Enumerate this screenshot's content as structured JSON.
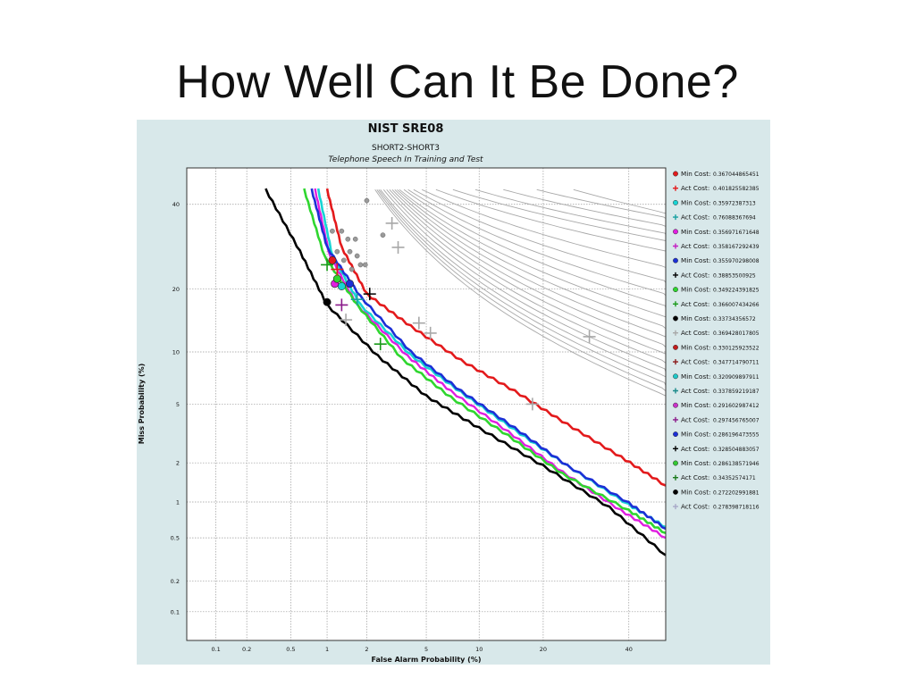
{
  "slide": {
    "title": "How Well Can It Be Done?"
  },
  "chart_data": {
    "type": "line",
    "title": "NIST SRE08",
    "subtitle": "SHORT2-SHORT3",
    "subtitle2": "Telephone Speech In Training and Test",
    "xlabel": "False Alarm Probability (%)",
    "ylabel": "Miss Probability (%)",
    "x_scale": "normal-deviate (probit)",
    "y_scale": "normal-deviate (probit)",
    "xlim": [
      0.05,
      50
    ],
    "ylim": [
      0.05,
      50
    ],
    "x_ticks": [
      {
        "value": 0.1,
        "label": "0.1"
      },
      {
        "value": 0.2,
        "label": "0.2"
      },
      {
        "value": 0.5,
        "label": "0.5"
      },
      {
        "value": 1,
        "label": "1"
      },
      {
        "value": 2,
        "label": "2"
      },
      {
        "value": 5,
        "label": "5"
      },
      {
        "value": 10,
        "label": "10"
      },
      {
        "value": 20,
        "label": "20"
      },
      {
        "value": 40,
        "label": "40"
      }
    ],
    "y_ticks": [
      {
        "value": 0.1,
        "label": "0.1"
      },
      {
        "value": 0.2,
        "label": "0.2"
      },
      {
        "value": 0.5,
        "label": "0.5"
      },
      {
        "value": 1,
        "label": "1"
      },
      {
        "value": 2,
        "label": "2"
      },
      {
        "value": 5,
        "label": "5"
      },
      {
        "value": 10,
        "label": "10"
      },
      {
        "value": 20,
        "label": "20"
      },
      {
        "value": 40,
        "label": "40"
      }
    ],
    "grid": true,
    "legend_placement": "right",
    "legend": [
      {
        "marker": "dot",
        "color": "#e31a1c",
        "label": "Min Cost:",
        "value": "0.367044865451"
      },
      {
        "marker": "plus",
        "color": "#e31a1c",
        "label": "Act Cost:",
        "value": "0.401825582385"
      },
      {
        "marker": "dot",
        "color": "#17d4d4",
        "label": "Min Cost:",
        "value": "0.35972387313"
      },
      {
        "marker": "plus",
        "color": "#17a0a0",
        "label": "Act Cost:",
        "value": "0.76088367694"
      },
      {
        "marker": "dot",
        "color": "#e01ee0",
        "label": "Min Cost:",
        "value": "0.356971671648"
      },
      {
        "marker": "plus",
        "color": "#c31ec3",
        "label": "Act Cost:",
        "value": "0.358167292439"
      },
      {
        "marker": "dot",
        "color": "#1c2fd6",
        "label": "Min Cost:",
        "value": "0.355970298008"
      },
      {
        "marker": "plus",
        "color": "#000000",
        "label": "Act Cost:",
        "value": "0.38853500925"
      },
      {
        "marker": "dot",
        "color": "#2fd62f",
        "label": "Min Cost:",
        "value": "0.349224391825"
      },
      {
        "marker": "plus",
        "color": "#1a9a1a",
        "label": "Act Cost:",
        "value": "0.366007434266"
      },
      {
        "marker": "dot",
        "color": "#000000",
        "label": "Min Cost:",
        "value": "0.33734356572"
      },
      {
        "marker": "plus",
        "color": "#a8a8a8",
        "label": "Act Cost:",
        "value": "0.369428017805"
      },
      {
        "marker": "dot",
        "color": "#c21d1d",
        "label": "Min Cost:",
        "value": "0.330125923522"
      },
      {
        "marker": "plus",
        "color": "#8a1a1a",
        "label": "Act Cost:",
        "value": "0.347714790711"
      },
      {
        "marker": "dot",
        "color": "#1ec8c8",
        "label": "Min Cost:",
        "value": "0.320909897911"
      },
      {
        "marker": "plus",
        "color": "#1a8a8a",
        "label": "Act Cost:",
        "value": "0.337859219187"
      },
      {
        "marker": "dot",
        "color": "#c833c8",
        "label": "Min Cost:",
        "value": "0.291602987412"
      },
      {
        "marker": "plus",
        "color": "#8a1a8a",
        "label": "Act Cost:",
        "value": "0.297456765007"
      },
      {
        "marker": "dot",
        "color": "#1c2fd6",
        "label": "Min Cost:",
        "value": "0.286196473555"
      },
      {
        "marker": "plus",
        "color": "#000000",
        "label": "Act Cost:",
        "value": "0.328504883057"
      },
      {
        "marker": "dot",
        "color": "#33c833",
        "label": "Min Cost:",
        "value": "0.286138571946"
      },
      {
        "marker": "plus",
        "color": "#1a7a1a",
        "label": "Act Cost:",
        "value": "0.34352574171"
      },
      {
        "marker": "dot",
        "color": "#000000",
        "label": "Min Cost:",
        "value": "0.272202991881"
      },
      {
        "marker": "plus",
        "color": "#a8a8c8",
        "label": "Act Cost:",
        "value": "0.278398718116"
      }
    ],
    "series": [
      {
        "color": "#e31a1c",
        "width": 2.6,
        "points": [
          [
            1.0,
            44
          ],
          [
            1.3,
            29
          ],
          [
            2.0,
            19
          ],
          [
            4,
            13.5
          ],
          [
            8,
            9
          ],
          [
            15,
            6
          ],
          [
            25,
            3.7
          ],
          [
            38,
            2.2
          ],
          [
            50,
            1.35
          ]
        ]
      },
      {
        "color": "#17d4d4",
        "width": 2.6,
        "points": [
          [
            0.85,
            44
          ],
          [
            1.1,
            27
          ],
          [
            1.8,
            17
          ],
          [
            4,
            9.6
          ],
          [
            8,
            5.9
          ],
          [
            15,
            3.4
          ],
          [
            25,
            1.9
          ],
          [
            40,
            0.95
          ],
          [
            50,
            0.62
          ]
        ]
      },
      {
        "color": "#e01ee0",
        "width": 2.4,
        "points": [
          [
            0.8,
            44
          ],
          [
            1.05,
            27
          ],
          [
            1.7,
            17
          ],
          [
            3.8,
            9.5
          ],
          [
            7,
            6
          ],
          [
            14,
            3.3
          ],
          [
            24,
            1.7
          ],
          [
            38,
            0.85
          ],
          [
            50,
            0.5
          ]
        ]
      },
      {
        "color": "#1c2fd6",
        "width": 2.6,
        "points": [
          [
            0.75,
            44
          ],
          [
            1.0,
            29
          ],
          [
            1.8,
            18.5
          ],
          [
            4,
            10
          ],
          [
            8,
            6
          ],
          [
            15,
            3.5
          ],
          [
            25,
            1.9
          ],
          [
            40,
            0.98
          ],
          [
            50,
            0.6
          ]
        ]
      },
      {
        "color": "#2fd62f",
        "width": 2.6,
        "points": [
          [
            0.65,
            44
          ],
          [
            0.95,
            27
          ],
          [
            1.7,
            17
          ],
          [
            3.5,
            9.2
          ],
          [
            7,
            5.5
          ],
          [
            14,
            3.1
          ],
          [
            24,
            1.65
          ],
          [
            40,
            0.85
          ],
          [
            50,
            0.55
          ]
        ]
      },
      {
        "color": "#000000",
        "width": 2.6,
        "points": [
          [
            0.3,
            44
          ],
          [
            0.6,
            28
          ],
          [
            1.0,
            17
          ],
          [
            2.4,
            9.5
          ],
          [
            5,
            5.6
          ],
          [
            10,
            3.5
          ],
          [
            20,
            1.9
          ],
          [
            35,
            0.9
          ],
          [
            50,
            0.35
          ]
        ]
      }
    ],
    "markers": [
      {
        "shape": "dot",
        "color": "#e31a1c",
        "x": 1.1,
        "y": 26
      },
      {
        "shape": "dot",
        "color": "#17d4d4",
        "x": 1.3,
        "y": 20.5
      },
      {
        "shape": "dot",
        "color": "#e01ee0",
        "x": 1.15,
        "y": 21
      },
      {
        "shape": "dot",
        "color": "#1c2fd6",
        "x": 1.5,
        "y": 21
      },
      {
        "shape": "dot",
        "color": "#2fd62f",
        "x": 1.2,
        "y": 22
      },
      {
        "shape": "dot",
        "color": "#000000",
        "x": 1.0,
        "y": 17.5
      },
      {
        "shape": "plus",
        "color": "#e31a1c",
        "x": 1.2,
        "y": 24
      },
      {
        "shape": "plus",
        "color": "#17a0a0",
        "x": 1.7,
        "y": 18
      },
      {
        "shape": "plus",
        "color": "#8a1a8a",
        "x": 1.3,
        "y": 17
      },
      {
        "shape": "plus",
        "color": "#000000",
        "x": 2.1,
        "y": 19
      },
      {
        "shape": "plus",
        "color": "#1a9a1a",
        "x": 2.5,
        "y": 11
      },
      {
        "shape": "plus",
        "color": "#1a9a1a",
        "x": 1.0,
        "y": 25
      },
      {
        "shape": "plus",
        "color": "#a8a8a8",
        "x": 3.0,
        "y": 35
      },
      {
        "shape": "plus",
        "color": "#a8a8a8",
        "x": 3.3,
        "y": 29
      },
      {
        "shape": "plus",
        "color": "#a8a8a8",
        "x": 18,
        "y": 5.0
      },
      {
        "shape": "plus",
        "color": "#a8a8a8",
        "x": 30,
        "y": 12
      },
      {
        "shape": "plus",
        "color": "#a8a8a8",
        "x": 4.5,
        "y": 14
      },
      {
        "shape": "plus",
        "color": "#a8a8a8",
        "x": 5.3,
        "y": 12.5
      },
      {
        "shape": "plus",
        "color": "#a8a8a8",
        "x": 1.4,
        "y": 14.5
      }
    ]
  }
}
